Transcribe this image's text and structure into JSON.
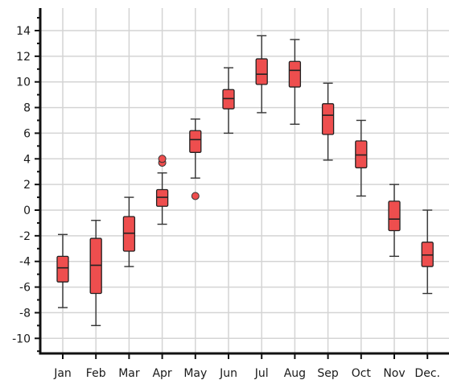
{
  "chart_data": {
    "type": "box",
    "title": "",
    "xlabel": "",
    "ylabel": "",
    "ylim": [
      -11,
      15
    ],
    "yticks": [
      14,
      12,
      10,
      8,
      6,
      4,
      2,
      0,
      -2,
      -4,
      -6,
      -8,
      -10
    ],
    "grid": true,
    "legend": "none",
    "box_color": "#ee4e4e",
    "categories": [
      "Jan",
      "Feb",
      "Mar",
      "Apr",
      "May",
      "Jun",
      "Jul",
      "Aug",
      "Sep",
      "Oct",
      "Nov",
      "Dec."
    ],
    "boxes": [
      {
        "min": -7.6,
        "q1": -5.6,
        "median": -4.5,
        "q3": -3.6,
        "max": -1.9,
        "outliers": []
      },
      {
        "min": -9.0,
        "q1": -6.5,
        "median": -4.3,
        "q3": -2.2,
        "max": -0.8,
        "outliers": []
      },
      {
        "min": -4.4,
        "q1": -3.2,
        "median": -1.8,
        "q3": -0.5,
        "max": 1.0,
        "outliers": []
      },
      {
        "min": -1.1,
        "q1": 0.3,
        "median": 1.0,
        "q3": 1.6,
        "max": 2.9,
        "outliers": [
          3.7,
          4.0
        ]
      },
      {
        "min": 2.5,
        "q1": 4.5,
        "median": 5.5,
        "q3": 6.2,
        "max": 7.1,
        "outliers": [
          1.1
        ]
      },
      {
        "min": 6.0,
        "q1": 7.9,
        "median": 8.7,
        "q3": 9.4,
        "max": 11.1,
        "outliers": []
      },
      {
        "min": 7.6,
        "q1": 9.8,
        "median": 10.6,
        "q3": 11.8,
        "max": 13.6,
        "outliers": []
      },
      {
        "min": 6.7,
        "q1": 9.6,
        "median": 10.9,
        "q3": 11.6,
        "max": 13.3,
        "outliers": []
      },
      {
        "min": 3.9,
        "q1": 5.9,
        "median": 7.4,
        "q3": 8.3,
        "max": 9.9,
        "outliers": []
      },
      {
        "min": 1.1,
        "q1": 3.3,
        "median": 4.3,
        "q3": 5.4,
        "max": 7.0,
        "outliers": []
      },
      {
        "min": -3.6,
        "q1": -1.6,
        "median": -0.7,
        "q3": 0.7,
        "max": 2.0,
        "outliers": []
      },
      {
        "min": -6.5,
        "q1": -4.4,
        "median": -3.5,
        "q3": -2.5,
        "max": 0.0,
        "outliers": []
      }
    ]
  }
}
